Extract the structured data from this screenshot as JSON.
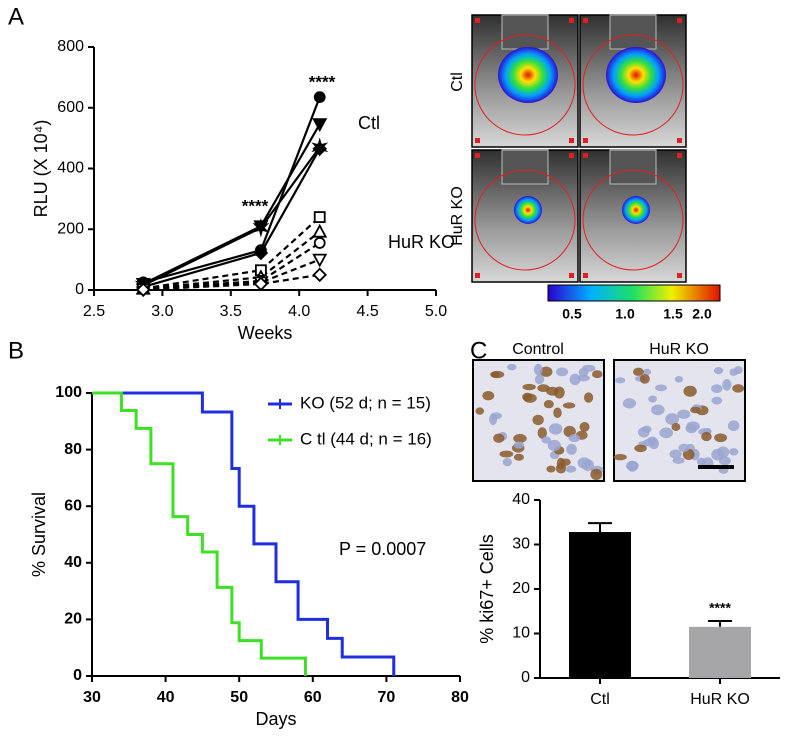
{
  "panel_labels": [
    "A",
    "B",
    "C"
  ],
  "imaging": {
    "row_labels": [
      "Ctl",
      "HuR KO"
    ],
    "colorbar_labels": [
      "0.5",
      "1.0",
      "1.5",
      "2.0"
    ]
  },
  "histology": {
    "labels": [
      "Control",
      "HuR KO"
    ]
  },
  "chart_data": [
    {
      "type": "line",
      "ylabel": "RLU (X 10⁴)",
      "xlabel": "Weeks",
      "xlim": [
        2.5,
        5.0
      ],
      "xticks": [
        2.5,
        {
          "value": 3,
          "label": "3.0"
        },
        3.5,
        {
          "value": 4,
          "label": "4.0"
        },
        4.5,
        {
          "value": 5,
          "label": "5.0"
        }
      ],
      "ylim": [
        0,
        800
      ],
      "yticks": [
        0,
        200,
        400,
        600,
        800
      ],
      "x": [
        2.86,
        3.72,
        4.15
      ],
      "annotations": [
        "****",
        "****",
        "Ctl",
        "HuR KO"
      ],
      "series": [
        {
          "color": "#000000",
          "marker": "circle",
          "dash": false,
          "values": [
            25,
            131,
            635
          ]
        },
        {
          "color": "#000000",
          "marker": "triangle-down",
          "dash": false,
          "values": [
            20,
            210,
            546
          ]
        },
        {
          "color": "#000000",
          "marker": "star",
          "dash": false,
          "values": [
            15,
            205,
            470
          ]
        },
        {
          "color": "#000000",
          "marker": "diamond",
          "dash": false,
          "values": [
            10,
            122,
            465
          ]
        },
        {
          "color": "#000000",
          "marker": "square-open",
          "dash": true,
          "values": [
            5,
            65,
            240
          ]
        },
        {
          "color": "#000000",
          "marker": "triangle-up-open",
          "dash": true,
          "values": [
            4,
            42,
            192
          ]
        },
        {
          "color": "#000000",
          "marker": "circle-open",
          "dash": true,
          "values": [
            4,
            30,
            155
          ]
        },
        {
          "color": "#000000",
          "marker": "triangle-down-open",
          "dash": true,
          "values": [
            2,
            25,
            100
          ]
        },
        {
          "color": "#000000",
          "marker": "diamond-open",
          "dash": true,
          "values": [
            1,
            20,
            50
          ]
        }
      ]
    },
    {
      "type": "step",
      "ylabel": "% Survival",
      "xlabel": "Days",
      "xlim": [
        30,
        80
      ],
      "xticks": [
        30,
        40,
        50,
        60,
        70,
        80
      ],
      "ylim": [
        0,
        100
      ],
      "yticks": [
        0,
        20,
        40,
        60,
        80,
        100
      ],
      "annotations": [
        "P = 0.0007"
      ],
      "series": [
        {
          "name": "KO (52 d; n = 15)",
          "color": "#1f2fe0",
          "x": [
            30,
            45,
            49,
            50,
            52,
            55,
            58,
            62,
            64,
            71
          ],
          "values": [
            100,
            93.3,
            73.3,
            60,
            46.7,
            33.3,
            20,
            13.3,
            6.7,
            0
          ]
        },
        {
          "name": "C tl (44 d; n = 16)",
          "color": "#3de024",
          "x": [
            30,
            34,
            36,
            38,
            41,
            43,
            45,
            47,
            49,
            50,
            53,
            59
          ],
          "values": [
            100,
            93.8,
            87.5,
            75,
            56.3,
            50,
            43.8,
            31.3,
            18.8,
            12.5,
            6.3,
            0
          ]
        }
      ]
    },
    {
      "type": "bar",
      "ylabel": "% ki67+ Cells",
      "categories": [
        "Ctl",
        "HuR KO"
      ],
      "values": [
        32.8,
        11.5
      ],
      "errors": [
        2,
        1.3
      ],
      "colors": [
        "#000000",
        "#a6a6a8"
      ],
      "ylim": [
        0,
        40
      ],
      "yticks": [
        0,
        10,
        20,
        30,
        40
      ],
      "annotations": [
        "****"
      ]
    }
  ]
}
